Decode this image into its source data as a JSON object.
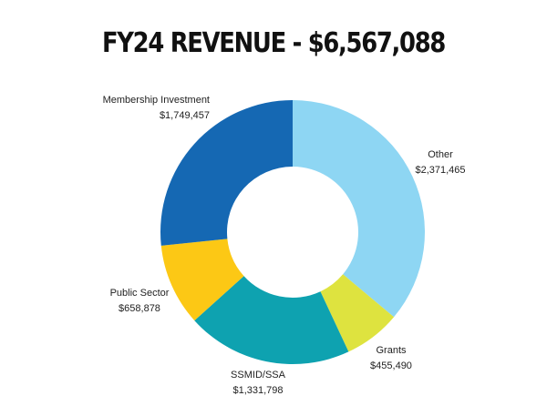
{
  "chart_data": {
    "type": "pie",
    "title": "FY24 REVENUE - $6,567,088",
    "categories": [
      "Other",
      "Grants",
      "SSMID/SSA",
      "Public Sector",
      "Membership Investment"
    ],
    "values": [
      2371465,
      455490,
      1331798,
      658878,
      1749457
    ],
    "value_labels": [
      "$2,371,465",
      "$455,490",
      "$1,331,798",
      "$658,878",
      "$1,749,457"
    ],
    "colors": [
      "#8ed6f3",
      "#dee33f",
      "#0ea2b0",
      "#fcc815",
      "#1568b3"
    ],
    "donut": true,
    "legend": "none"
  }
}
